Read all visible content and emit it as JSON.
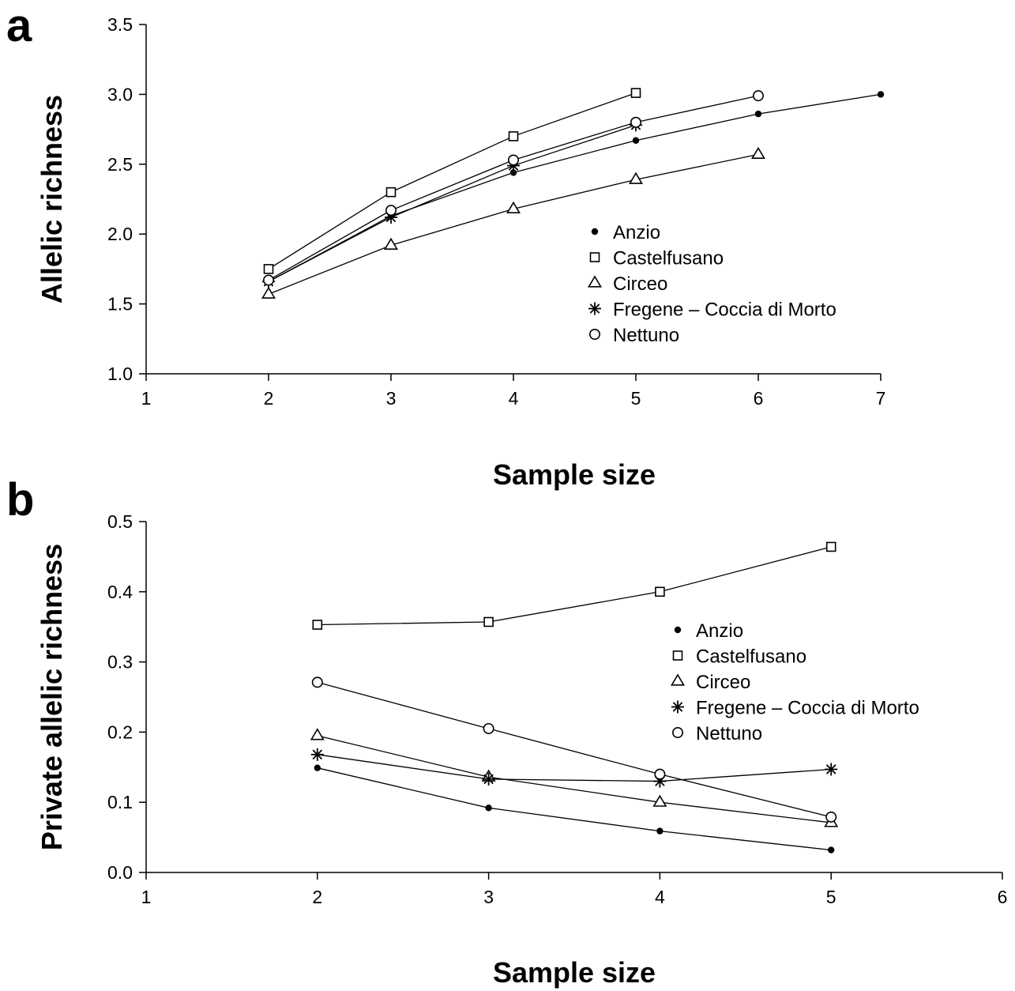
{
  "chart_data": [
    {
      "type": "line",
      "panel_label": "a",
      "xlabel": "Sample size",
      "ylabel": "Allelic richness",
      "xlim": [
        1,
        7
      ],
      "ylim": [
        1.0,
        3.5
      ],
      "xticks": [
        "1",
        "2",
        "3",
        "4",
        "5",
        "6",
        "7"
      ],
      "yticks": [
        "1.0",
        "1.5",
        "2.0",
        "2.5",
        "3.0",
        "3.5"
      ],
      "grid": false,
      "legend_position": "center-right",
      "series": [
        {
          "name": "Anzio",
          "marker": "filled-circle",
          "x": [
            2,
            3,
            4,
            5,
            6,
            7
          ],
          "y": [
            1.66,
            2.13,
            2.44,
            2.67,
            2.86,
            3.0
          ]
        },
        {
          "name": "Castelfusano",
          "marker": "square",
          "x": [
            2,
            3,
            4,
            5
          ],
          "y": [
            1.75,
            2.3,
            2.7,
            3.01
          ]
        },
        {
          "name": "Circeo",
          "marker": "triangle",
          "x": [
            2,
            3,
            4,
            5,
            6
          ],
          "y": [
            1.57,
            1.92,
            2.18,
            2.39,
            2.57
          ]
        },
        {
          "name": "Fregene – Coccia di Morto",
          "marker": "asterisk",
          "x": [
            2,
            3,
            4,
            5
          ],
          "y": [
            1.66,
            2.12,
            2.49,
            2.78
          ]
        },
        {
          "name": "Nettuno",
          "marker": "open-circle",
          "x": [
            2,
            3,
            4,
            5,
            6
          ],
          "y": [
            1.67,
            2.17,
            2.53,
            2.8,
            2.99
          ]
        }
      ]
    },
    {
      "type": "line",
      "panel_label": "b",
      "xlabel": "Sample size",
      "ylabel": "Private allelic richness",
      "xlim": [
        1,
        6
      ],
      "ylim": [
        0.0,
        0.5
      ],
      "xticks": [
        "1",
        "2",
        "3",
        "4",
        "5",
        "6"
      ],
      "yticks": [
        "0.0",
        "0.1",
        "0.2",
        "0.3",
        "0.4",
        "0.5"
      ],
      "grid": false,
      "legend_position": "center-right",
      "series": [
        {
          "name": "Anzio",
          "marker": "filled-circle",
          "x": [
            2,
            3,
            4,
            5
          ],
          "y": [
            0.149,
            0.092,
            0.059,
            0.032
          ]
        },
        {
          "name": "Castelfusano",
          "marker": "square",
          "x": [
            2,
            3,
            4,
            5
          ],
          "y": [
            0.353,
            0.357,
            0.4,
            0.464
          ]
        },
        {
          "name": "Circeo",
          "marker": "triangle",
          "x": [
            2,
            3,
            4,
            5
          ],
          "y": [
            0.195,
            0.136,
            0.1,
            0.071
          ]
        },
        {
          "name": "Fregene – Coccia di Morto",
          "marker": "asterisk",
          "x": [
            2,
            3,
            4,
            5
          ],
          "y": [
            0.168,
            0.133,
            0.13,
            0.147
          ]
        },
        {
          "name": "Nettuno",
          "marker": "open-circle",
          "x": [
            2,
            3,
            4,
            5
          ],
          "y": [
            0.271,
            0.205,
            0.14,
            0.079
          ]
        }
      ]
    }
  ]
}
